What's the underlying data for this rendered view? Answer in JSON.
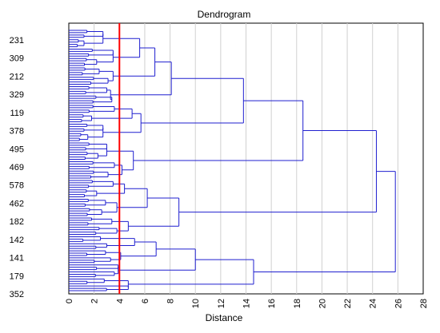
{
  "chart_data": {
    "type": "dendrogram",
    "title": "Dendrogram",
    "xlabel": "Distance",
    "ylabel": "",
    "xlim": [
      0,
      28
    ],
    "x_ticks": [
      0,
      2,
      4,
      6,
      8,
      10,
      12,
      14,
      16,
      18,
      20,
      22,
      24,
      26,
      28
    ],
    "x_tick_labels": [
      "0",
      "2",
      "4",
      "6",
      "8",
      "10",
      "12",
      "14",
      "16",
      "18",
      "20",
      "22",
      "24",
      "26",
      "28"
    ],
    "leaf_labels": [
      "231",
      "309",
      "212",
      "329",
      "119",
      "378",
      "495",
      "469",
      "578",
      "462",
      "182",
      "142",
      "141",
      "179",
      "352"
    ],
    "grid": "vertical",
    "cut_line": {
      "distance": 4.0,
      "color": "#ff0000"
    },
    "branch_color": "#1f1fcf",
    "leaf_count": 112,
    "merges": [
      {
        "id": "n1",
        "children": [
          "r1",
          "r2"
        ],
        "height": 2.7
      },
      {
        "id": "n2",
        "children": [
          "r3",
          "r4"
        ],
        "height": 3.5
      },
      {
        "id": "n3",
        "children": [
          "n1",
          "n2"
        ],
        "height": 5.6
      },
      {
        "id": "n4",
        "children": [
          "r5",
          "r6"
        ],
        "height": 3.5
      },
      {
        "id": "n5",
        "children": [
          "n3",
          "n4"
        ],
        "height": 6.8
      },
      {
        "id": "n6",
        "children": [
          "r7",
          "r8"
        ],
        "height": 3.3
      },
      {
        "id": "n7",
        "children": [
          "n5",
          "n6"
        ],
        "height": 8.1
      },
      {
        "id": "n8",
        "children": [
          "r9",
          "r10"
        ],
        "height": 5.0
      },
      {
        "id": "n9",
        "children": [
          "r11",
          "r12"
        ],
        "height": 2.7
      },
      {
        "id": "n10",
        "children": [
          "n8",
          "n9"
        ],
        "height": 5.7
      },
      {
        "id": "n11",
        "children": [
          "n7",
          "n10"
        ],
        "height": 13.8
      },
      {
        "id": "n12",
        "children": [
          "r13",
          "r14"
        ],
        "height": 3.0
      },
      {
        "id": "n13",
        "children": [
          "r15",
          "r16"
        ],
        "height": 4.2
      },
      {
        "id": "n14",
        "children": [
          "n12",
          "n13"
        ],
        "height": 5.1
      },
      {
        "id": "n15",
        "children": [
          "n11",
          "n14"
        ],
        "height": 18.5
      },
      {
        "id": "n16",
        "children": [
          "r17",
          "r18"
        ],
        "height": 4.4
      },
      {
        "id": "n17",
        "children": [
          "r19",
          "r20"
        ],
        "height": 3.8
      },
      {
        "id": "n18",
        "children": [
          "n16",
          "n17"
        ],
        "height": 6.2
      },
      {
        "id": "n19",
        "children": [
          "r21",
          "r22"
        ],
        "height": 4.7
      },
      {
        "id": "n20",
        "children": [
          "n18",
          "n19"
        ],
        "height": 8.7
      },
      {
        "id": "n21",
        "children": [
          "n15",
          "n20"
        ],
        "height": 24.3
      },
      {
        "id": "n22",
        "children": [
          "r23",
          "r24"
        ],
        "height": 5.2
      },
      {
        "id": "n23",
        "children": [
          "r25",
          "r26"
        ],
        "height": 4.1
      },
      {
        "id": "n24",
        "children": [
          "n22",
          "n23"
        ],
        "height": 6.9
      },
      {
        "id": "n25",
        "children": [
          "r27",
          "r28"
        ],
        "height": 3.9
      },
      {
        "id": "n26",
        "children": [
          "n24",
          "n25"
        ],
        "height": 10.0
      },
      {
        "id": "n27",
        "children": [
          "r29",
          "r30"
        ],
        "height": 4.7
      },
      {
        "id": "n28",
        "children": [
          "n26",
          "n27"
        ],
        "height": 14.6
      },
      {
        "id": "n29",
        "children": [
          "n21",
          "n28"
        ],
        "height": 25.8
      }
    ],
    "cluster_heights_below_cut": [
      2.7,
      1.2,
      3.5,
      2.2,
      2.4,
      3.1,
      3.0,
      3.4,
      3.6,
      1.8,
      2.7,
      1.5,
      3.0,
      2.3,
      3.6,
      3.1,
      3.5,
      2.2,
      2.9,
      2.6,
      3.4,
      3.8,
      2.5,
      3.0,
      2.9,
      3.3,
      3.9,
      3.6,
      2.8,
      4.7
    ]
  }
}
